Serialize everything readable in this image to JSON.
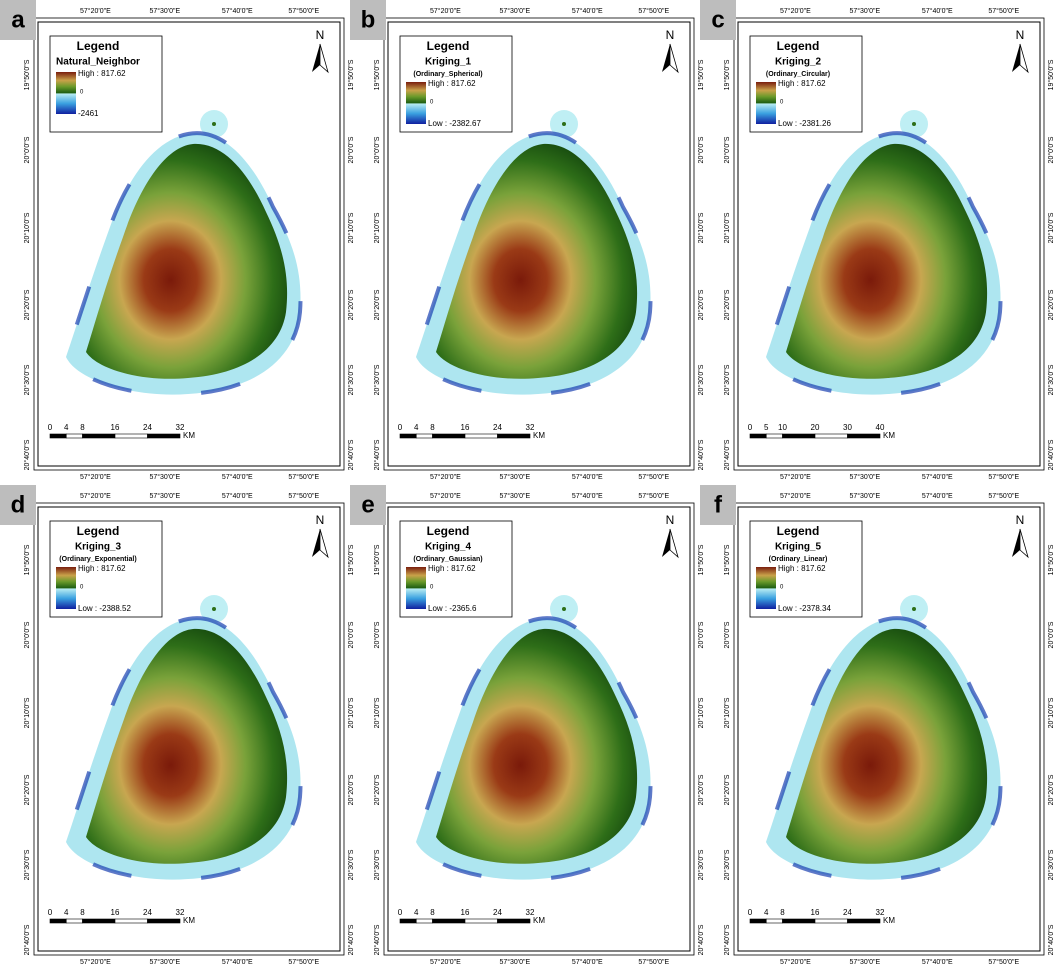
{
  "figure": {
    "legend_heading": "Legend",
    "north": "N",
    "zero_label": "0",
    "scale_unit": "KM",
    "longitude_labels": [
      "57°20'0\"E",
      "57°30'0\"E",
      "57°40'0\"E",
      "57°50'0\"E"
    ],
    "latitude_labels": [
      "19°50'0\"S",
      "20°0'0\"S",
      "20°10'0\"S",
      "20°20'0\"S",
      "20°30'0\"S",
      "20°40'0\"S"
    ],
    "panels": [
      {
        "letter": "a",
        "layer": "Natural_Neighbor",
        "high": "High : 817.62",
        "low": "-2461",
        "scale_labels": [
          0,
          4,
          8,
          16,
          24,
          32
        ]
      },
      {
        "letter": "b",
        "layer": "Kriging_1",
        "subtitle": "(Ordinary_Spherical)",
        "high": "High : 817.62",
        "low": "Low : -2382.67",
        "scale_labels": [
          0,
          4,
          8,
          16,
          24,
          32
        ]
      },
      {
        "letter": "c",
        "layer": "Kriging_2",
        "subtitle": "(Ordinary_Circular)",
        "high": "High : 817.62",
        "low": "Low : -2381.26",
        "scale_labels": [
          0,
          5,
          10,
          20,
          30,
          40
        ]
      },
      {
        "letter": "d",
        "layer": "Kriging_3",
        "subtitle": "(Ordinary_Exponential)",
        "high": "High : 817.62",
        "low": "Low : -2388.52",
        "scale_labels": [
          0,
          4,
          8,
          16,
          24,
          32
        ]
      },
      {
        "letter": "e",
        "layer": "Kriging_4",
        "subtitle": "(Ordinary_Gaussian)",
        "high": "High : 817.62",
        "low": "Low : -2365.6",
        "scale_labels": [
          0,
          4,
          8,
          16,
          24,
          32
        ]
      },
      {
        "letter": "f",
        "layer": "Kriging_5",
        "subtitle": "(Ordinary_Linear)",
        "high": "High : 817.62",
        "low": "Low : -2378.34",
        "scale_labels": [
          0,
          4,
          8,
          16,
          24,
          32
        ]
      }
    ]
  }
}
